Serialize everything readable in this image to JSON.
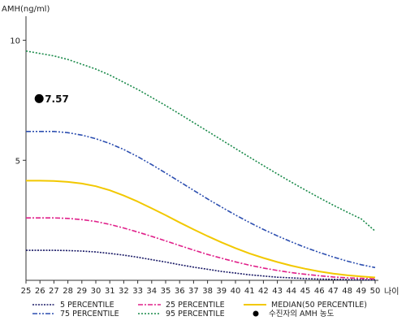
{
  "chart_data": {
    "type": "line",
    "ylabel": "AMH(ng/ml)",
    "xlabel": "나이",
    "xlim": [
      25,
      50
    ],
    "ylim": [
      0,
      11
    ],
    "x_ticks": [
      25,
      26,
      27,
      28,
      29,
      30,
      31,
      32,
      33,
      34,
      35,
      36,
      37,
      38,
      39,
      40,
      41,
      42,
      43,
      44,
      45,
      46,
      47,
      48,
      49,
      50
    ],
    "y_ticks": [
      5,
      10
    ],
    "x": [
      25,
      26,
      27,
      28,
      29,
      30,
      31,
      32,
      33,
      34,
      35,
      36,
      37,
      38,
      39,
      40,
      41,
      42,
      43,
      44,
      45,
      46,
      47,
      48,
      49,
      50
    ],
    "series": [
      {
        "name": "5 PERCENTILE",
        "color": "#1a1a66",
        "dash": "dotted-dense",
        "values": [
          1.25,
          1.25,
          1.25,
          1.24,
          1.22,
          1.18,
          1.12,
          1.05,
          0.96,
          0.86,
          0.76,
          0.65,
          0.55,
          0.46,
          0.37,
          0.3,
          0.23,
          0.18,
          0.13,
          0.1,
          0.07,
          0.05,
          0.04,
          0.03,
          0.02,
          0.02
        ]
      },
      {
        "name": "25 PERCENTILE",
        "color": "#e0208a",
        "dash": "dashdot",
        "values": [
          2.6,
          2.6,
          2.6,
          2.58,
          2.53,
          2.45,
          2.33,
          2.18,
          2.01,
          1.83,
          1.64,
          1.45,
          1.26,
          1.08,
          0.92,
          0.77,
          0.63,
          0.51,
          0.41,
          0.32,
          0.25,
          0.19,
          0.14,
          0.1,
          0.08,
          0.06
        ]
      },
      {
        "name": "MEDIAN(50 PERCENTILE)",
        "color": "#f2c800",
        "dash": "solid",
        "values": [
          4.15,
          4.15,
          4.14,
          4.1,
          4.03,
          3.92,
          3.75,
          3.53,
          3.28,
          3.0,
          2.71,
          2.41,
          2.12,
          1.84,
          1.58,
          1.34,
          1.12,
          0.93,
          0.76,
          0.61,
          0.48,
          0.37,
          0.28,
          0.21,
          0.16,
          0.12
        ]
      },
      {
        "name": "75 PERCENTILE",
        "color": "#2d4fb0",
        "dash": "dashdotdot",
        "values": [
          6.2,
          6.2,
          6.2,
          6.15,
          6.05,
          5.9,
          5.7,
          5.45,
          5.15,
          4.82,
          4.47,
          4.11,
          3.75,
          3.39,
          3.05,
          2.72,
          2.41,
          2.12,
          1.85,
          1.6,
          1.37,
          1.16,
          0.97,
          0.8,
          0.65,
          0.53
        ]
      },
      {
        "name": "95 PERCENTILE",
        "color": "#1a8a4a",
        "dash": "dotted",
        "values": [
          9.55,
          9.45,
          9.35,
          9.2,
          9.0,
          8.8,
          8.55,
          8.25,
          7.95,
          7.62,
          7.28,
          6.93,
          6.57,
          6.21,
          5.85,
          5.49,
          5.13,
          4.78,
          4.43,
          4.09,
          3.76,
          3.44,
          3.13,
          2.84,
          2.56,
          2.05
        ]
      }
    ],
    "patient": {
      "name": "수진자의 AMH 농도",
      "x": 26,
      "y": 7.57,
      "label": "7.57",
      "color": "#000000"
    },
    "grid": false,
    "legend_position": "bottom"
  }
}
